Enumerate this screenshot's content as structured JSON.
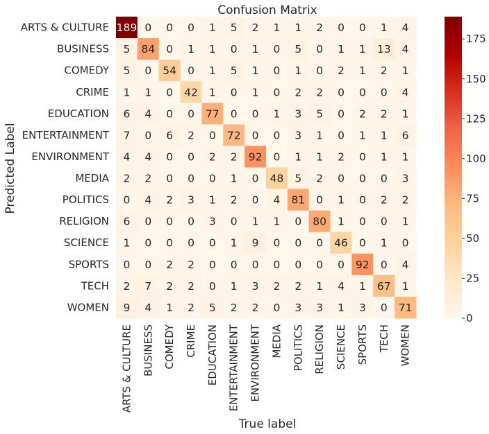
{
  "chart_data": {
    "type": "heatmap",
    "title": "Confusion Matrix",
    "xlabel": "True label",
    "ylabel": "Predicted Label",
    "categories": [
      "ARTS & CULTURE",
      "BUSINESS",
      "COMEDY",
      "CRIME",
      "EDUCATION",
      "ENTERTAINMENT",
      "ENVIRONMENT",
      "MEDIA",
      "POLITICS",
      "RELIGION",
      "SCIENCE",
      "SPORTS",
      "TECH",
      "WOMEN"
    ],
    "matrix": [
      [
        189,
        0,
        0,
        0,
        1,
        5,
        2,
        1,
        1,
        2,
        0,
        0,
        1,
        4
      ],
      [
        5,
        84,
        0,
        1,
        1,
        0,
        1,
        0,
        5,
        0,
        1,
        1,
        13,
        4
      ],
      [
        5,
        0,
        54,
        0,
        1,
        5,
        1,
        0,
        1,
        0,
        2,
        1,
        2,
        1
      ],
      [
        1,
        1,
        0,
        42,
        1,
        0,
        1,
        0,
        2,
        2,
        0,
        0,
        0,
        4
      ],
      [
        6,
        4,
        0,
        0,
        77,
        0,
        0,
        1,
        3,
        5,
        0,
        2,
        2,
        1
      ],
      [
        7,
        0,
        6,
        2,
        0,
        72,
        0,
        0,
        3,
        1,
        0,
        1,
        1,
        6
      ],
      [
        4,
        4,
        0,
        0,
        2,
        2,
        92,
        0,
        1,
        1,
        2,
        0,
        1,
        1
      ],
      [
        2,
        2,
        0,
        0,
        0,
        1,
        0,
        48,
        5,
        2,
        0,
        0,
        0,
        3
      ],
      [
        0,
        4,
        2,
        3,
        1,
        2,
        0,
        4,
        81,
        0,
        1,
        0,
        2,
        2
      ],
      [
        6,
        0,
        0,
        0,
        3,
        0,
        1,
        1,
        0,
        80,
        1,
        0,
        0,
        1
      ],
      [
        1,
        0,
        0,
        0,
        0,
        1,
        9,
        0,
        0,
        0,
        46,
        0,
        1,
        0
      ],
      [
        0,
        0,
        2,
        2,
        0,
        0,
        0,
        0,
        0,
        0,
        0,
        92,
        0,
        4
      ],
      [
        2,
        7,
        2,
        2,
        0,
        1,
        3,
        2,
        2,
        1,
        4,
        1,
        67,
        1
      ],
      [
        9,
        4,
        1,
        2,
        5,
        2,
        2,
        0,
        3,
        3,
        1,
        3,
        0,
        71
      ]
    ],
    "colorbar": {
      "colormap": "OrRd",
      "range": [
        0,
        189
      ],
      "ticks": [
        0,
        25,
        50,
        75,
        100,
        125,
        150,
        175
      ]
    },
    "grid": false
  }
}
